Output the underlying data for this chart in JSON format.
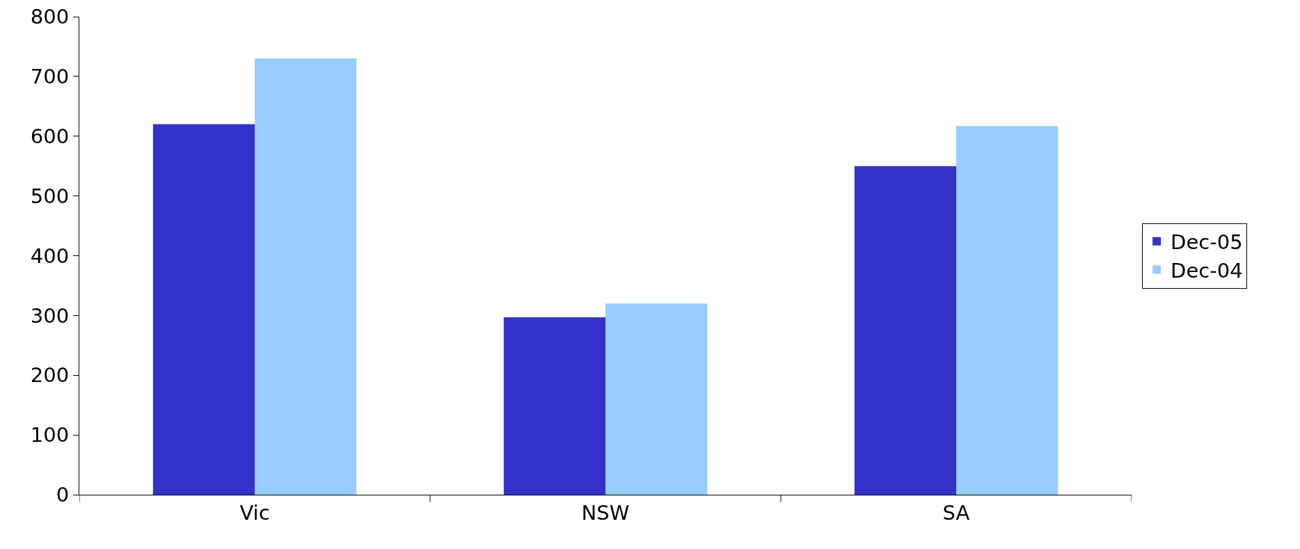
{
  "chart_data": {
    "type": "bar",
    "categories": [
      "Vic",
      "NSW",
      "SA"
    ],
    "series": [
      {
        "name": "Dec-05",
        "color": "#3333cc",
        "values": [
          620,
          297,
          550
        ]
      },
      {
        "name": "Dec-04",
        "color": "#99ccff",
        "values": [
          730,
          320,
          617
        ]
      }
    ],
    "ylim": [
      0,
      800
    ],
    "yticks": [
      0,
      100,
      200,
      300,
      400,
      500,
      600,
      700,
      800
    ],
    "grid": false,
    "legend": "right"
  }
}
